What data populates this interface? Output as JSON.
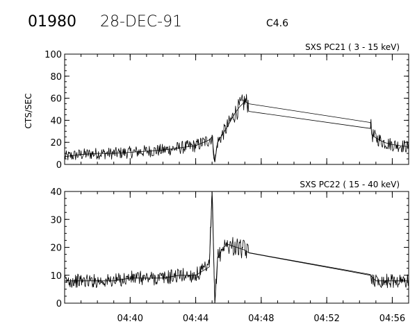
{
  "header": {
    "event_id": "01980",
    "date": "28-DEC-91",
    "flare_class": "C4.6"
  },
  "chart_data": [
    {
      "type": "line",
      "title": "SXS PC21  (  3 - 15 keV)",
      "xlabel": "",
      "ylabel": "CTS/SEC",
      "x_unit": "minutes after 04:36 (time of day)",
      "xlim": [
        "04:36:00",
        "04:57:00"
      ],
      "ylim": [
        0,
        100
      ],
      "yticks": [
        0,
        20,
        40,
        60,
        80,
        100
      ],
      "xticks": [
        "04:40",
        "04:44",
        "04:48",
        "04:52",
        "04:56"
      ],
      "grid": false,
      "series": [
        {
          "data_gap": [
            "04:47:15",
            "04:54:40"
          ],
          "x": [
            "04:36:00",
            "04:37:00",
            "04:38:00",
            "04:39:00",
            "04:40:00",
            "04:41:00",
            "04:42:00",
            "04:43:00",
            "04:44:00",
            "04:44:48",
            "04:45:00",
            "04:45:10",
            "04:45:20",
            "04:45:40",
            "04:46:00",
            "04:46:20",
            "04:46:40",
            "04:47:00",
            "04:47:15",
            "04:54:40",
            "04:54:45",
            "04:55:00",
            "04:55:30",
            "04:56:00",
            "04:56:30",
            "04:57:00"
          ],
          "values": [
            7,
            9,
            10,
            10,
            11,
            12,
            13,
            15,
            17,
            22,
            25,
            2,
            20,
            28,
            36,
            45,
            52,
            57,
            55,
            38,
            27,
            24,
            20,
            18,
            17,
            16
          ]
        }
      ]
    },
    {
      "type": "line",
      "title": "SXS PC22  ( 15 - 40 keV)",
      "xlabel": "",
      "ylabel": "",
      "x_unit": "minutes after 04:36 (time of day)",
      "xlim": [
        "04:36:00",
        "04:57:00"
      ],
      "ylim": [
        0,
        40
      ],
      "yticks": [
        0,
        10,
        20,
        30,
        40
      ],
      "xticks": [
        "04:40",
        "04:44",
        "04:48",
        "04:52",
        "04:56"
      ],
      "grid": false,
      "series": [
        {
          "data_gap": [
            "04:47:15",
            "04:54:40"
          ],
          "x": [
            "04:36:00",
            "04:37:00",
            "04:38:00",
            "04:39:00",
            "04:40:00",
            "04:41:00",
            "04:42:00",
            "04:43:00",
            "04:44:00",
            "04:44:50",
            "04:45:00",
            "04:45:10",
            "04:45:20",
            "04:45:40",
            "04:46:00",
            "04:46:30",
            "04:47:00",
            "04:47:15",
            "04:54:40",
            "04:55:00",
            "04:55:30",
            "04:56:00",
            "04:56:30",
            "04:57:00"
          ],
          "values": [
            8,
            8,
            8,
            8,
            9,
            9,
            9,
            10,
            10,
            13,
            40,
            0,
            16,
            20,
            21,
            20,
            19,
            18,
            10,
            8,
            8,
            8,
            8,
            8
          ]
        }
      ]
    }
  ]
}
